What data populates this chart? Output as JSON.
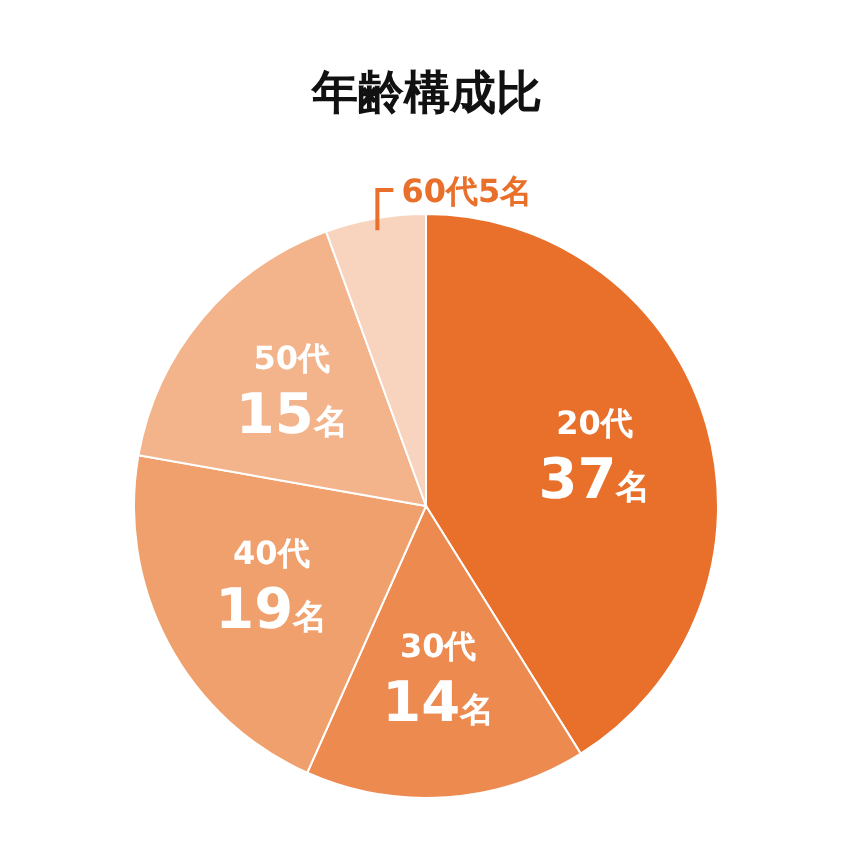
{
  "chart_data": {
    "type": "pie",
    "title": "年齢構成比",
    "categories": [
      "20代",
      "30代",
      "40代",
      "50代",
      "60代"
    ],
    "values": [
      37,
      14,
      19,
      15,
      5
    ],
    "value_labels": [
      "37名",
      "14名",
      "19名",
      "15名",
      "5名"
    ],
    "colors": [
      "#e8702a",
      "#ec8a4f",
      "#f0a06c",
      "#f3b48c",
      "#f8d3bd"
    ]
  }
}
